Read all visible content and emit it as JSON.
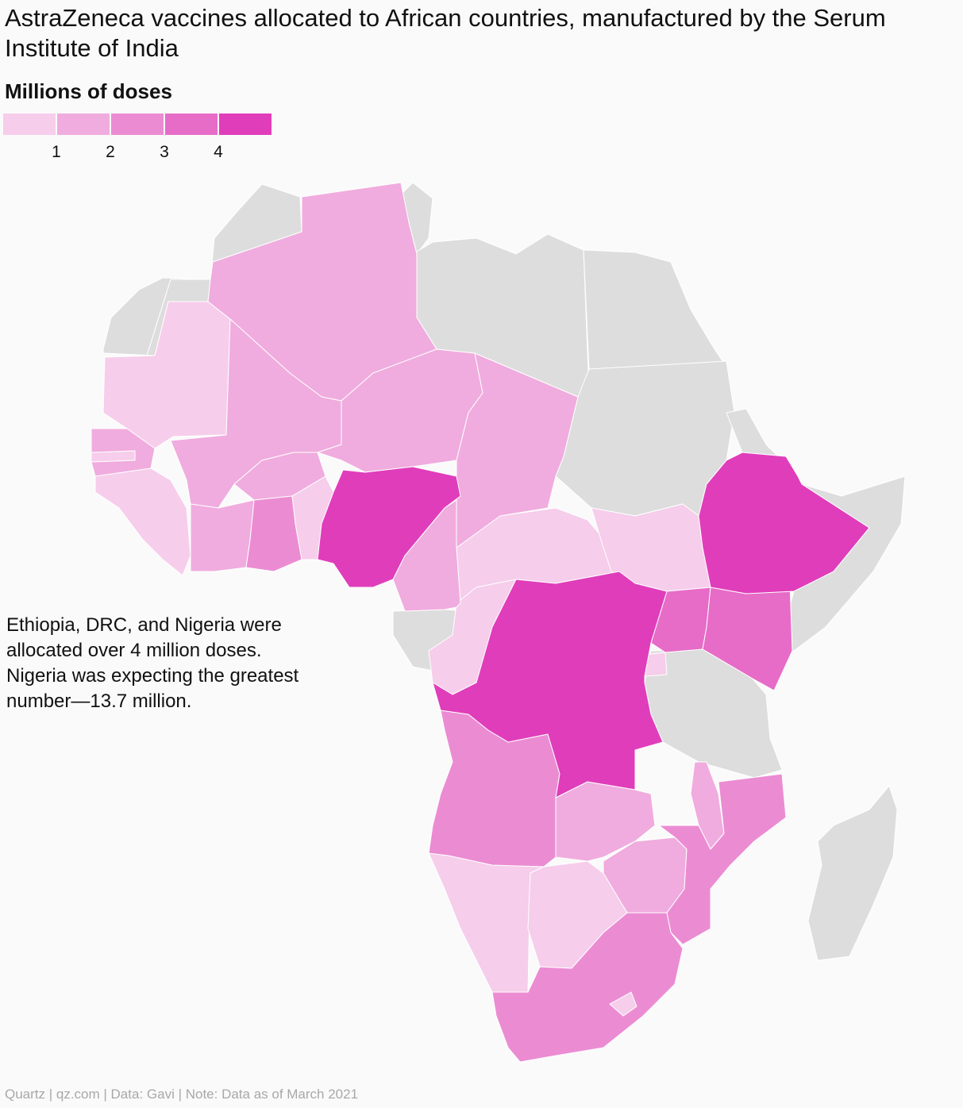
{
  "title": "AstraZeneca vaccines allocated to African countries, manufactured by the Serum Institute of India",
  "legend": {
    "title": "Millions of doses",
    "bins": [
      {
        "color": "#f6cdeb"
      },
      {
        "color": "#f0acde"
      },
      {
        "color": "#eb8cd3"
      },
      {
        "color": "#e66cc7"
      },
      {
        "color": "#e03dbb"
      }
    ],
    "ticks": [
      "1",
      "2",
      "3",
      "4"
    ]
  },
  "annotation": {
    "lines": [
      "Ethiopia, DRC, and Nigeria were",
      "allocated over 4 million doses.",
      "Nigeria was expecting the greatest",
      "number—13.7 million."
    ]
  },
  "footer": "Quartz | qz.com | Data: Gavi | Note: Data as of March 2021",
  "no_data_color": "#dddddd"
}
